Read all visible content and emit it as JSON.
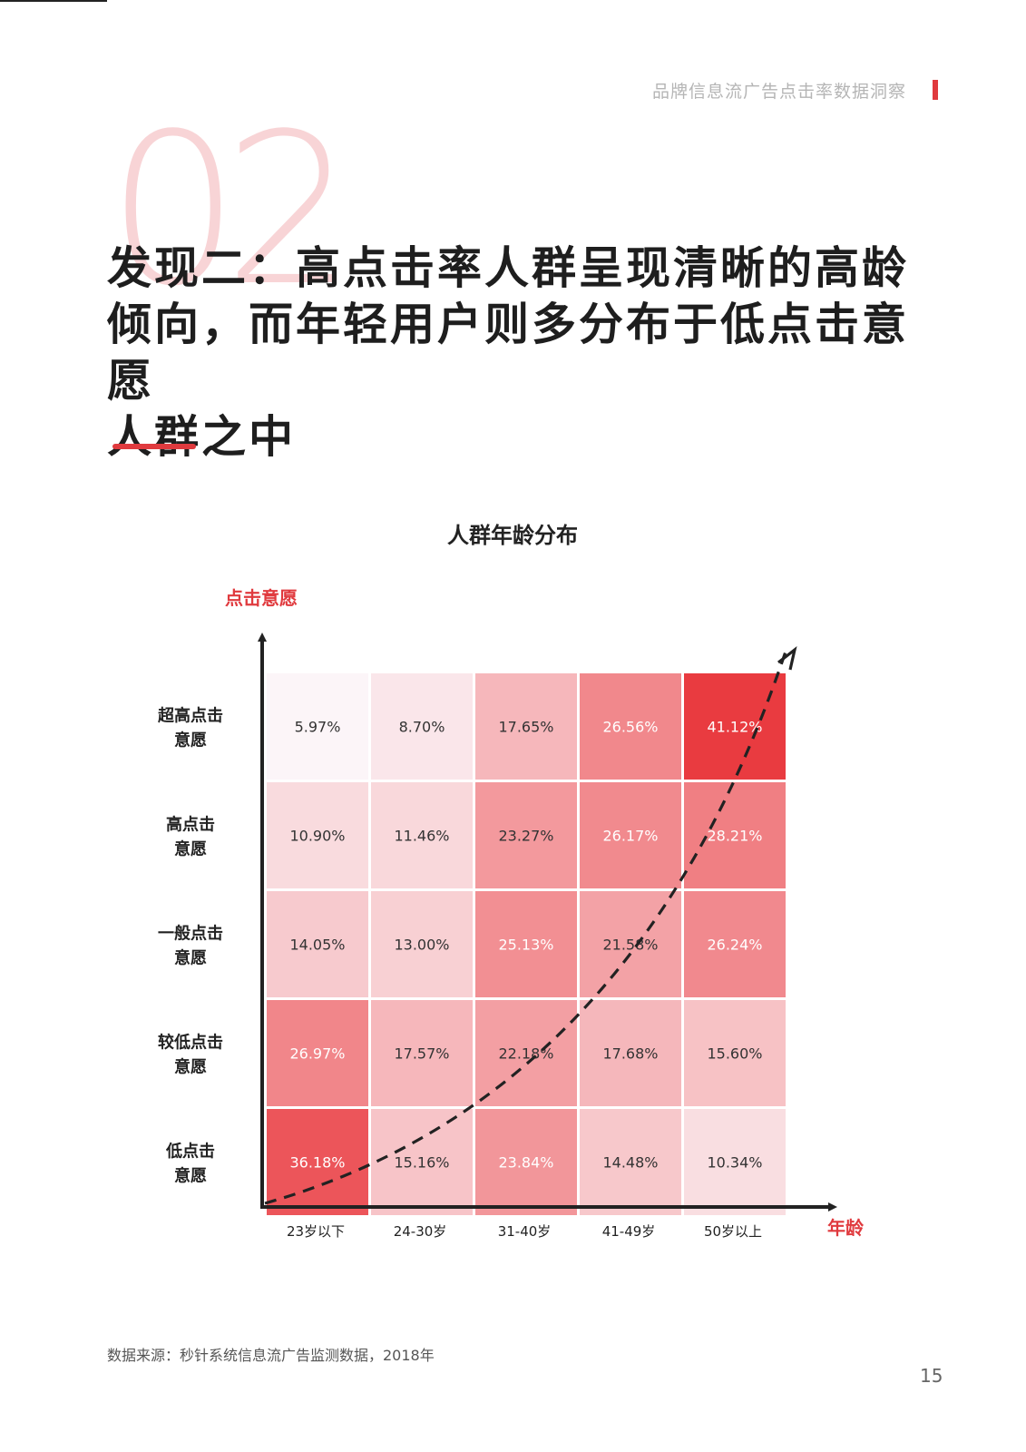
{
  "header": {
    "title": "品牌信息流广告点击率数据洞察"
  },
  "section_number": "02",
  "title_lines": [
    "发现二：高点击率人群呈现清晰的高龄",
    "倾向，而年轻用户则多分布于低点击意愿",
    "人群之中"
  ],
  "source": "数据来源：秒针系统信息流广告监测数据，2018年",
  "page_number": "15",
  "colors": {
    "accent": "#e03a3e"
  },
  "chart_data": {
    "type": "heatmap",
    "title": "人群年龄分布",
    "ylabel": "点击意愿",
    "xlabel": "年龄",
    "categories": [
      "23岁以下",
      "24-30岁",
      "31-40岁",
      "41-49岁",
      "50岁以上"
    ],
    "rows": [
      {
        "name_lines": [
          "超高点击",
          "意愿"
        ],
        "values": [
          5.97,
          8.7,
          17.65,
          26.56,
          41.12
        ],
        "labels": [
          "5.97%",
          "8.70%",
          "17.65%",
          "26.56%",
          "41.12%"
        ]
      },
      {
        "name_lines": [
          "高点击",
          "意愿"
        ],
        "values": [
          10.9,
          11.46,
          23.27,
          26.17,
          28.21
        ],
        "labels": [
          "10.90%",
          "11.46%",
          "23.27%",
          "26.17%",
          "28.21%"
        ]
      },
      {
        "name_lines": [
          "一般点击",
          "意愿"
        ],
        "values": [
          14.05,
          13.0,
          25.13,
          21.58,
          26.24
        ],
        "labels": [
          "14.05%",
          "13.00%",
          "25.13%",
          "21.58%",
          "26.24%"
        ]
      },
      {
        "name_lines": [
          "较低点击",
          "意愿"
        ],
        "values": [
          26.97,
          17.57,
          22.18,
          17.68,
          15.6
        ],
        "labels": [
          "26.97%",
          "17.57%",
          "22.18%",
          "17.68%",
          "15.60%"
        ]
      },
      {
        "name_lines": [
          "低点击",
          "意愿"
        ],
        "values": [
          36.18,
          15.16,
          23.84,
          14.48,
          10.34
        ],
        "labels": [
          "36.18%",
          "15.16%",
          "23.84%",
          "14.48%",
          "10.34%"
        ]
      }
    ],
    "trend_line": "dashed arrow from bottom-left to top-right"
  }
}
